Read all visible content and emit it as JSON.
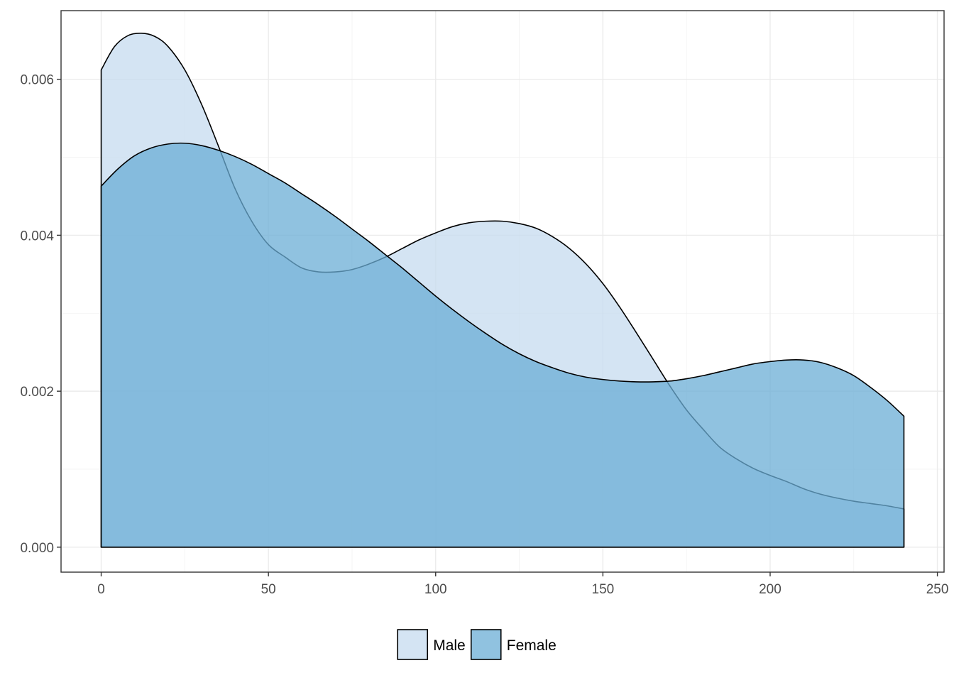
{
  "chart_data": {
    "type": "area",
    "subtype": "density",
    "title": "",
    "xlabel": "",
    "ylabel": "",
    "xlim": [
      -12,
      252
    ],
    "ylim": [
      -0.00032,
      0.00688
    ],
    "x_ticks": [
      0,
      50,
      100,
      150,
      200,
      250
    ],
    "x_tick_labels": [
      "0",
      "50",
      "100",
      "150",
      "200",
      "250"
    ],
    "y_ticks": [
      0,
      0.002,
      0.004,
      0.006
    ],
    "y_tick_labels": [
      "0.000",
      "0.002",
      "0.004",
      "0.006"
    ],
    "grid": true,
    "legend_position": "bottom",
    "series": [
      {
        "name": "Male",
        "color": "#c6dbef",
        "fill_opacity": 0.75,
        "points": [
          [
            0,
            0.00612
          ],
          [
            4,
            0.00642
          ],
          [
            8,
            0.00656
          ],
          [
            12,
            0.00659
          ],
          [
            16,
            0.00655
          ],
          [
            20,
            0.00642
          ],
          [
            25,
            0.00612
          ],
          [
            30,
            0.00568
          ],
          [
            35,
            0.00515
          ],
          [
            40,
            0.0046
          ],
          [
            45,
            0.00418
          ],
          [
            50,
            0.00388
          ],
          [
            55,
            0.00372
          ],
          [
            60,
            0.00358
          ],
          [
            65,
            0.00353
          ],
          [
            70,
            0.00353
          ],
          [
            75,
            0.00356
          ],
          [
            80,
            0.00363
          ],
          [
            85,
            0.00372
          ],
          [
            90,
            0.00383
          ],
          [
            95,
            0.00394
          ],
          [
            100,
            0.00403
          ],
          [
            105,
            0.00411
          ],
          [
            110,
            0.00416
          ],
          [
            115,
            0.00418
          ],
          [
            120,
            0.00418
          ],
          [
            125,
            0.00415
          ],
          [
            130,
            0.00409
          ],
          [
            135,
            0.00398
          ],
          [
            140,
            0.00383
          ],
          [
            145,
            0.00363
          ],
          [
            150,
            0.00338
          ],
          [
            155,
            0.00308
          ],
          [
            160,
            0.00275
          ],
          [
            165,
            0.00241
          ],
          [
            170,
            0.00207
          ],
          [
            175,
            0.00176
          ],
          [
            180,
            0.00151
          ],
          [
            185,
            0.00128
          ],
          [
            190,
            0.00113
          ],
          [
            195,
            0.00101
          ],
          [
            200,
            0.00092
          ],
          [
            205,
            0.00084
          ],
          [
            210,
            0.00075
          ],
          [
            215,
            0.00068
          ],
          [
            220,
            0.00063
          ],
          [
            225,
            0.00059
          ],
          [
            230,
            0.00056
          ],
          [
            235,
            0.00053
          ],
          [
            240,
            0.00049
          ]
        ]
      },
      {
        "name": "Female",
        "color": "#6baed6",
        "fill_opacity": 0.75,
        "points": [
          [
            0,
            0.00463
          ],
          [
            5,
            0.00485
          ],
          [
            10,
            0.00502
          ],
          [
            15,
            0.00512
          ],
          [
            20,
            0.00517
          ],
          [
            25,
            0.00518
          ],
          [
            30,
            0.00515
          ],
          [
            35,
            0.00509
          ],
          [
            40,
            0.00501
          ],
          [
            45,
            0.00491
          ],
          [
            50,
            0.00479
          ],
          [
            55,
            0.00467
          ],
          [
            60,
            0.00453
          ],
          [
            65,
            0.00439
          ],
          [
            70,
            0.00424
          ],
          [
            75,
            0.00408
          ],
          [
            80,
            0.00392
          ],
          [
            85,
            0.00375
          ],
          [
            90,
            0.00358
          ],
          [
            95,
            0.0034
          ],
          [
            100,
            0.00322
          ],
          [
            105,
            0.00305
          ],
          [
            110,
            0.00289
          ],
          [
            115,
            0.00274
          ],
          [
            120,
            0.0026
          ],
          [
            125,
            0.00248
          ],
          [
            130,
            0.00238
          ],
          [
            135,
            0.0023
          ],
          [
            140,
            0.00223
          ],
          [
            145,
            0.00218
          ],
          [
            150,
            0.00215
          ],
          [
            155,
            0.00213
          ],
          [
            160,
            0.00212
          ],
          [
            165,
            0.00212
          ],
          [
            170,
            0.00213
          ],
          [
            175,
            0.00216
          ],
          [
            180,
            0.0022
          ],
          [
            185,
            0.00225
          ],
          [
            190,
            0.0023
          ],
          [
            195,
            0.00235
          ],
          [
            200,
            0.00238
          ],
          [
            205,
            0.0024
          ],
          [
            210,
            0.0024
          ],
          [
            215,
            0.00237
          ],
          [
            220,
            0.0023
          ],
          [
            225,
            0.0022
          ],
          [
            230,
            0.00205
          ],
          [
            235,
            0.00188
          ],
          [
            240,
            0.00168
          ]
        ]
      }
    ]
  }
}
